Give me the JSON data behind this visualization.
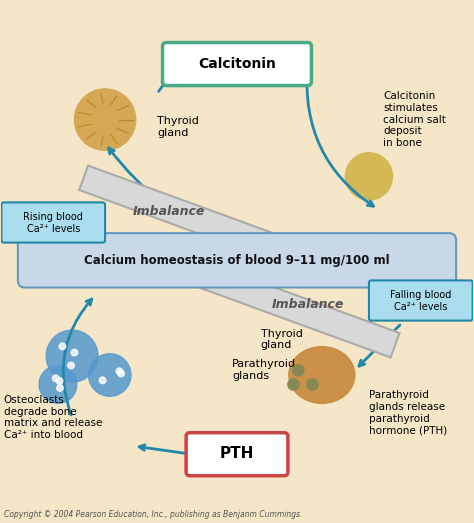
{
  "bg_color": "#f5e6c8",
  "title": "Calcium homeostasis of blood 9–11 mg/100 ml",
  "title_bg": "#c8d8e8",
  "calcitonin_label": "Calcitonin",
  "calcitonin_box_color": "#4aaa88",
  "pth_label": "PTH",
  "pth_box_color": "#cc4444",
  "imbalance_color": "#d8d8d8",
  "arrow_color": "#2288aa",
  "rising_blood_label": "Rising blood\nCa²⁺ levels",
  "falling_blood_label": "Falling blood\nCa²⁺ levels",
  "rising_box_color": "#aaddee",
  "falling_box_color": "#aaddee",
  "thyroid_label_top": "Thyroid\ngland",
  "thyroid_label_bottom": "Thyroid\ngland",
  "parathyroid_label": "Parathyroid\nglands",
  "parathyroid_release_label": "Parathyroid\nglands release\nparathyroid\nhormone (PTH)",
  "calcitonin_stimulates_label": "Calcitonin\nstimulates\ncalcium salt\ndeposit\nin bone",
  "osteoclasts_label": "Osteoclasts\ndegrade bone\nmatrix and release\nCa²⁺ into blood",
  "copyright": "Copyright © 2004 Pearson Education, Inc., publishing as Benjanm Cummings.",
  "imbalance_label": "Imbalance"
}
